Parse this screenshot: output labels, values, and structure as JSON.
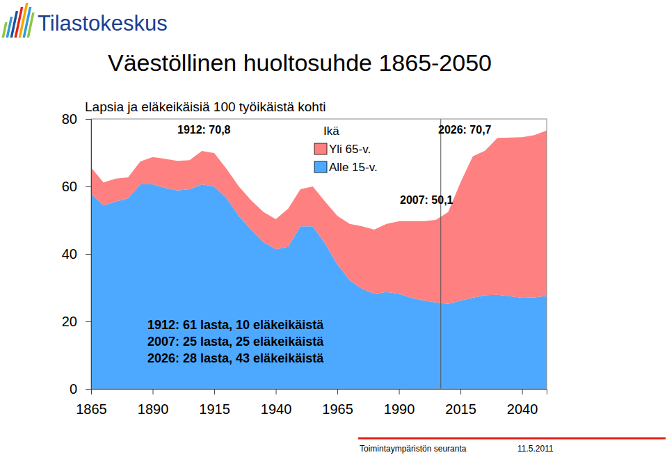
{
  "header": {
    "logo": "Tilastokeskus"
  },
  "chart_data": {
    "type": "area",
    "stacked": true,
    "title": "Väestöllinen huoltosuhde 1865-2050",
    "subtitle": "Lapsia ja eläkeikäisiä 100 työikäistä kohti",
    "x": [
      1865,
      1870,
      1875,
      1880,
      1885,
      1890,
      1895,
      1900,
      1905,
      1910,
      1915,
      1920,
      1925,
      1930,
      1935,
      1940,
      1945,
      1950,
      1955,
      1960,
      1965,
      1970,
      1975,
      1980,
      1985,
      1990,
      1995,
      2000,
      2005,
      2010,
      2015,
      2020,
      2025,
      2030,
      2035,
      2040,
      2045,
      2050
    ],
    "series": [
      {
        "name": "Alle 15-v.",
        "color": "#4da9ff",
        "values": [
          57.9,
          54.4,
          55.5,
          56.5,
          60.6,
          60.6,
          59.6,
          58.8,
          59.2,
          60.6,
          60.0,
          56.5,
          51.3,
          47.2,
          43.5,
          41.4,
          42.1,
          48.2,
          48.2,
          43.1,
          36.9,
          32.2,
          29.7,
          28.2,
          28.7,
          28.2,
          27.0,
          26.2,
          25.6,
          25.2,
          26.2,
          27.0,
          27.8,
          27.9,
          27.5,
          27.0,
          27.1,
          27.6
        ]
      },
      {
        "name": "Yli 65-v.",
        "color": "#ff8080",
        "values": [
          7.7,
          6.8,
          6.8,
          6.2,
          6.8,
          8.1,
          8.6,
          8.8,
          8.6,
          9.9,
          9.9,
          8.7,
          8.7,
          8.7,
          8.9,
          8.9,
          11.3,
          11.0,
          11.8,
          12.4,
          14.4,
          16.7,
          18.5,
          19.0,
          20.2,
          21.5,
          22.7,
          23.5,
          24.5,
          27.2,
          35.0,
          41.9,
          42.8,
          46.5,
          47.0,
          47.6,
          48.1,
          49.0
        ]
      }
    ],
    "xlim": [
      1865,
      2050
    ],
    "xticks": [
      1865,
      1890,
      1915,
      1940,
      1965,
      1990,
      2015,
      2040
    ],
    "ylim": [
      0,
      80
    ],
    "yticks": [
      0,
      20,
      40,
      60,
      80
    ],
    "grid": false,
    "legend_title": "Ikä",
    "vline_x": 2007,
    "annotations": [
      "1912: 70,8",
      "2026: 70,7",
      "2007: 50,1"
    ],
    "notes": [
      "1912: 61 lasta, 10 eläkeikäistä",
      "2007: 25 lasta, 25 eläkeikäistä",
      "2026: 28 lasta, 43 eläkeikäistä"
    ]
  },
  "footer": {
    "source": "Toimintaympäristön seuranta",
    "date": "11.5.2011"
  }
}
